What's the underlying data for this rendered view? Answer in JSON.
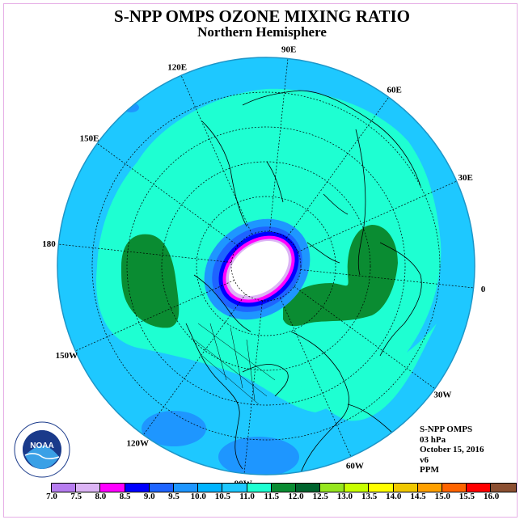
{
  "title": "S-NPP OMPS OZONE MIXING RATIO",
  "subtitle": "Northern Hemisphere",
  "longitude_labels": [
    {
      "label": "90E",
      "lon": 90
    },
    {
      "label": "60E",
      "lon": 60
    },
    {
      "label": "30E",
      "lon": 30
    },
    {
      "label": "0",
      "lon": 0
    },
    {
      "label": "30W",
      "lon": -30
    },
    {
      "label": "60W",
      "lon": -60
    },
    {
      "label": "90W",
      "lon": -90
    },
    {
      "label": "120W",
      "lon": -120
    },
    {
      "label": "150W",
      "lon": -150
    },
    {
      "label": "180",
      "lon": 180
    },
    {
      "label": "150E",
      "lon": 150
    },
    {
      "label": "120E",
      "lon": 120
    }
  ],
  "info": {
    "instrument": "S-NPP OMPS",
    "level": "03 hPa",
    "date": "October 15, 2016",
    "version": "v6",
    "units": "PPM"
  },
  "colorbar": {
    "ticks": [
      "7.0",
      "7.5",
      "8.0",
      "8.5",
      "9.0",
      "9.5",
      "10.0",
      "10.5",
      "11.0",
      "11.5",
      "12.0",
      "12.5",
      "13.0",
      "13.5",
      "14.0",
      "14.5",
      "15.0",
      "15.5",
      "16.0"
    ],
    "colors": [
      "#b77df0",
      "#dcb4f5",
      "#ff00ff",
      "#0000ff",
      "#1e64ff",
      "#1e96ff",
      "#00b4ff",
      "#1ec8ff",
      "#1effd2",
      "#0a8c32",
      "#00642d",
      "#96e61e",
      "#c8ff00",
      "#ffff00",
      "#f0c800",
      "#ffa000",
      "#ff6400",
      "#ff0000",
      "#8c5032"
    ]
  },
  "logo": {
    "text": "NOAA",
    "icon": "noaa-logo-icon"
  }
}
